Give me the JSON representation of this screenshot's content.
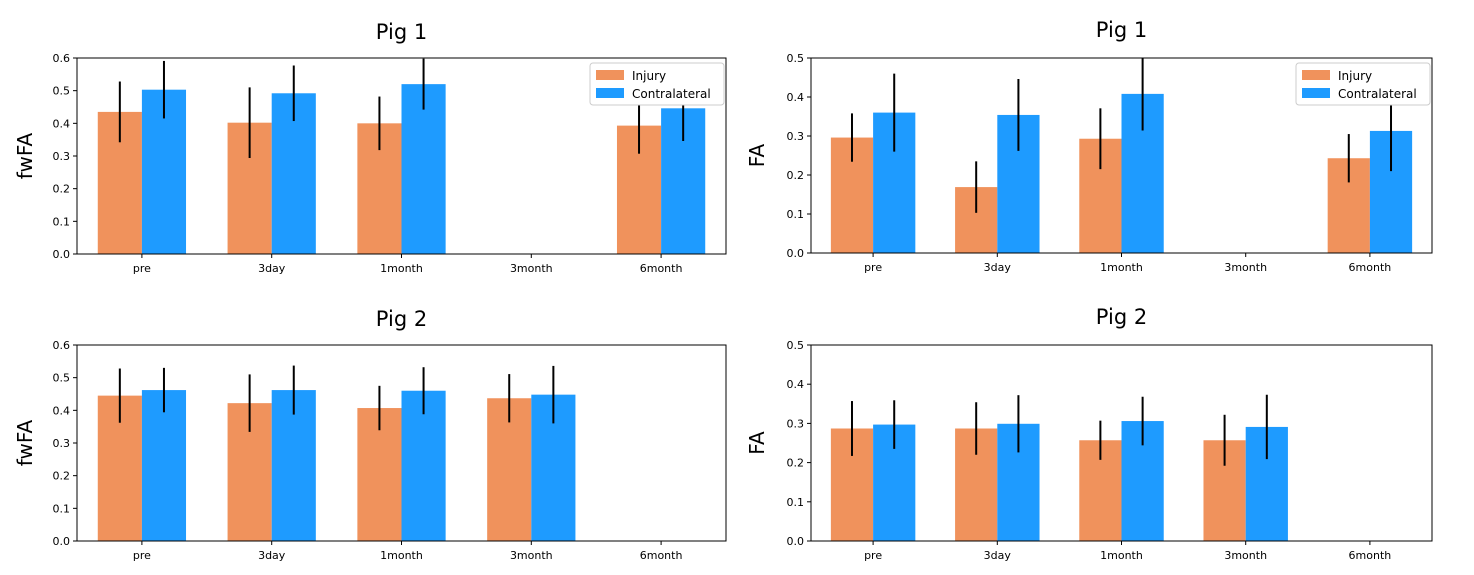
{
  "colors": {
    "injury": "#f0925c",
    "contralateral": "#1e9bff",
    "errorbar": "#000000"
  },
  "chart_data": [
    {
      "type": "bar",
      "title": "Pig 1",
      "ylabel": "fwFA",
      "xlabel": "",
      "ylim": [
        0,
        0.6
      ],
      "yticks": [
        "0.0",
        "0.1",
        "0.2",
        "0.3",
        "0.4",
        "0.5",
        "0.6"
      ],
      "categories": [
        "pre",
        "3day",
        "1month",
        "3month",
        "6month"
      ],
      "legend": "top-right",
      "series": [
        {
          "name": "Injury",
          "values": [
            0.435,
            0.402,
            0.4,
            null,
            0.393
          ],
          "errors": [
            0.093,
            0.108,
            0.082,
            null,
            0.086
          ]
        },
        {
          "name": "Contralateral",
          "values": [
            0.503,
            0.492,
            0.52,
            null,
            0.446
          ],
          "errors": [
            0.088,
            0.085,
            0.078,
            null,
            0.1
          ]
        }
      ]
    },
    {
      "type": "bar",
      "title": "Pig 1",
      "ylabel": "FA",
      "xlabel": "",
      "ylim": [
        0,
        0.5
      ],
      "yticks": [
        "0.0",
        "0.1",
        "0.2",
        "0.3",
        "0.4",
        "0.5"
      ],
      "categories": [
        "pre",
        "3day",
        "1month",
        "3month",
        "6month"
      ],
      "legend": "top-right",
      "series": [
        {
          "name": "Injury",
          "values": [
            0.296,
            0.169,
            0.293,
            null,
            0.243
          ],
          "errors": [
            0.062,
            0.066,
            0.078,
            null,
            0.062
          ]
        },
        {
          "name": "Contralateral",
          "values": [
            0.36,
            0.354,
            0.408,
            null,
            0.313
          ],
          "errors": [
            0.1,
            0.092,
            0.094,
            null,
            0.103
          ]
        }
      ]
    },
    {
      "type": "bar",
      "title": "Pig 2",
      "ylabel": "fwFA",
      "xlabel": "",
      "ylim": [
        0,
        0.6
      ],
      "yticks": [
        "0.0",
        "0.1",
        "0.2",
        "0.3",
        "0.4",
        "0.5",
        "0.6"
      ],
      "categories": [
        "pre",
        "3day",
        "1month",
        "3month",
        "6month"
      ],
      "series": [
        {
          "name": "Injury",
          "values": [
            0.445,
            0.422,
            0.407,
            0.437,
            null
          ],
          "errors": [
            0.083,
            0.088,
            0.068,
            0.074,
            null
          ]
        },
        {
          "name": "Contralateral",
          "values": [
            0.462,
            0.462,
            0.46,
            0.448,
            null
          ],
          "errors": [
            0.068,
            0.075,
            0.072,
            0.088,
            null
          ]
        }
      ]
    },
    {
      "type": "bar",
      "title": "Pig 2",
      "ylabel": "FA",
      "xlabel": "",
      "ylim": [
        0,
        0.5
      ],
      "yticks": [
        "0.0",
        "0.1",
        "0.2",
        "0.3",
        "0.4",
        "0.5"
      ],
      "categories": [
        "pre",
        "3day",
        "1month",
        "3month",
        "6month"
      ],
      "series": [
        {
          "name": "Injury",
          "values": [
            0.287,
            0.287,
            0.257,
            0.257,
            null
          ],
          "errors": [
            0.07,
            0.067,
            0.05,
            0.065,
            null
          ]
        },
        {
          "name": "Contralateral",
          "values": [
            0.297,
            0.299,
            0.306,
            0.291,
            null
          ],
          "errors": [
            0.062,
            0.073,
            0.062,
            0.082,
            null
          ]
        }
      ]
    }
  ]
}
